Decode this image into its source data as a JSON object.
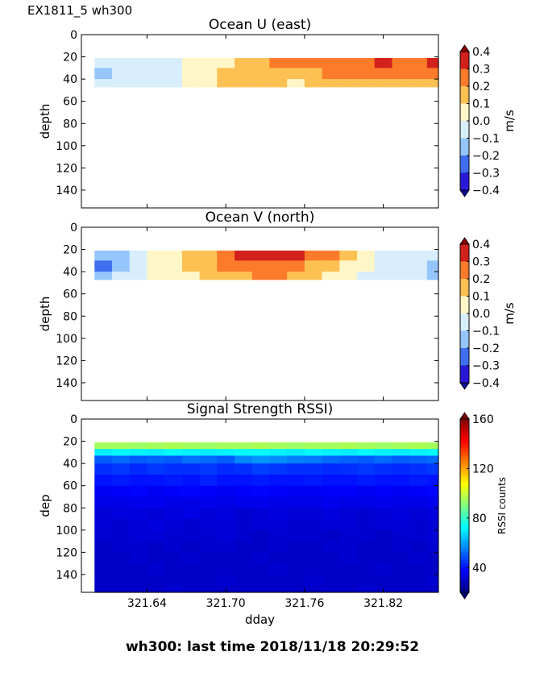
{
  "figure": {
    "suptitle": "EX1811_5 wh300",
    "footer": "wh300: last time 2018/11/18 20:29:52"
  },
  "chart_data": [
    {
      "type": "heatmap",
      "title": "Ocean U (east)",
      "xlabel": "",
      "ylabel": "depth",
      "x": [
        321.6,
        321.6133,
        321.6267,
        321.64,
        321.6533,
        321.6667,
        321.68,
        321.6933,
        321.7067,
        321.72,
        321.7333,
        321.7467,
        321.76,
        321.7733,
        321.7867,
        321.8,
        321.8133,
        321.8267,
        321.84,
        321.8533
      ],
      "xlim": [
        321.59,
        321.862
      ],
      "xticks": [
        "321.64",
        "321.70",
        "321.76",
        "321.82"
      ],
      "ylim": [
        156,
        0
      ],
      "yticks": [
        "0",
        "20",
        "40",
        "60",
        "80",
        "100",
        "120",
        "140"
      ],
      "depth_bins": [
        21,
        30,
        40
      ],
      "values": [
        [
          -0.05,
          -0.05,
          -0.05,
          -0.05,
          -0.05,
          0.05,
          0.05,
          0.05,
          0.15,
          0.15,
          0.25,
          0.25,
          0.25,
          0.25,
          0.25,
          0.25,
          0.35,
          0.25,
          0.25,
          0.35
        ],
        [
          -0.15,
          -0.05,
          -0.05,
          -0.05,
          -0.05,
          0.05,
          0.05,
          0.15,
          0.15,
          0.15,
          0.15,
          0.15,
          0.15,
          0.25,
          0.25,
          0.25,
          0.25,
          0.25,
          0.25,
          0.25
        ],
        [
          -0.05,
          -0.05,
          -0.05,
          -0.05,
          -0.05,
          0.05,
          0.05,
          0.15,
          0.15,
          0.15,
          0.15,
          0.05,
          0.15,
          0.15,
          0.15,
          0.15,
          0.15,
          0.15,
          0.15,
          0.15
        ]
      ],
      "colorbar": {
        "label": "m/s",
        "ticks": [
          "0.4",
          "0.3",
          "0.2",
          "0.1",
          "0.0",
          "−0.1",
          "−0.2",
          "−0.3",
          "−0.4"
        ],
        "range": [
          -0.4,
          0.4
        ]
      }
    },
    {
      "type": "heatmap",
      "title": "Ocean V (north)",
      "xlabel": "",
      "ylabel": "depth",
      "x": [
        321.6,
        321.6133,
        321.6267,
        321.64,
        321.6533,
        321.6667,
        321.68,
        321.6933,
        321.7067,
        321.72,
        321.7333,
        321.7467,
        321.76,
        321.7733,
        321.7867,
        321.8,
        321.8133,
        321.8267,
        321.84,
        321.8533
      ],
      "xlim": [
        321.59,
        321.862
      ],
      "xticks": [
        "321.64",
        "321.70",
        "321.76",
        "321.82"
      ],
      "ylim": [
        156,
        0
      ],
      "yticks": [
        "0",
        "20",
        "40",
        "60",
        "80",
        "100",
        "120",
        "140"
      ],
      "depth_bins": [
        21,
        30,
        40
      ],
      "values": [
        [
          -0.15,
          -0.15,
          -0.05,
          0.05,
          0.05,
          0.15,
          0.15,
          0.25,
          0.35,
          0.35,
          0.35,
          0.35,
          0.25,
          0.25,
          0.15,
          0.05,
          -0.05,
          -0.05,
          -0.05,
          -0.05
        ],
        [
          -0.25,
          -0.15,
          -0.05,
          0.05,
          0.05,
          0.15,
          0.15,
          0.25,
          0.25,
          0.25,
          0.25,
          0.25,
          0.15,
          0.15,
          0.05,
          0.05,
          -0.05,
          -0.05,
          -0.05,
          -0.15
        ],
        [
          -0.15,
          -0.05,
          -0.05,
          0.05,
          0.05,
          0.05,
          0.15,
          0.15,
          0.15,
          0.25,
          0.25,
          0.15,
          0.15,
          0.05,
          0.05,
          -0.05,
          -0.05,
          -0.05,
          -0.05,
          -0.15
        ]
      ],
      "colorbar": {
        "label": "m/s",
        "ticks": [
          "0.4",
          "0.3",
          "0.2",
          "0.1",
          "0.0",
          "−0.1",
          "−0.2",
          "−0.3",
          "−0.4"
        ],
        "range": [
          -0.4,
          0.4
        ]
      }
    },
    {
      "type": "heatmap",
      "title": "Signal Strength RSSI)",
      "xlabel": "dday",
      "ylabel": "dep",
      "x": [
        321.6,
        321.6133,
        321.6267,
        321.64,
        321.6533,
        321.6667,
        321.68,
        321.6933,
        321.7067,
        321.72,
        321.7333,
        321.7467,
        321.76,
        321.7733,
        321.7867,
        321.8,
        321.8133,
        321.8267,
        321.84,
        321.8533
      ],
      "xlim": [
        321.59,
        321.862
      ],
      "xticks": [
        "321.64",
        "321.70",
        "321.76",
        "321.82"
      ],
      "ylim": [
        156,
        0
      ],
      "yticks": [
        "0",
        "20",
        "40",
        "60",
        "80",
        "100",
        "120",
        "140"
      ],
      "depth_bins": [
        21,
        27,
        33,
        40,
        50,
        60,
        70,
        80,
        90,
        100,
        110,
        120,
        130,
        140,
        150
      ],
      "values": [
        [
          95,
          95,
          94,
          95,
          96,
          95,
          94,
          95,
          95,
          96,
          95,
          94,
          95,
          95,
          96,
          95,
          94,
          95,
          96,
          95
        ],
        [
          70,
          72,
          71,
          70,
          72,
          71,
          70,
          71,
          72,
          72,
          71,
          70,
          72,
          71,
          70,
          72,
          71,
          70,
          71,
          72
        ],
        [
          50,
          52,
          50,
          51,
          50,
          53,
          52,
          50,
          56,
          58,
          57,
          55,
          54,
          52,
          51,
          50,
          52,
          50,
          51,
          52
        ],
        [
          44,
          45,
          43,
          45,
          44,
          44,
          45,
          43,
          44,
          46,
          45,
          44,
          44,
          43,
          44,
          45,
          44,
          43,
          44,
          45
        ],
        [
          40,
          41,
          40,
          40,
          41,
          40,
          42,
          40,
          40,
          41,
          40,
          40,
          41,
          40,
          40,
          41,
          40,
          40,
          41,
          40
        ],
        [
          36,
          37,
          38,
          36,
          37,
          38,
          37,
          36,
          37,
          38,
          37,
          36,
          36,
          37,
          37,
          36,
          37,
          36,
          37,
          38
        ],
        [
          34,
          34,
          35,
          35,
          34,
          34,
          35,
          34,
          35,
          35,
          34,
          34,
          34,
          35,
          34,
          34,
          35,
          34,
          34,
          35
        ],
        [
          32,
          33,
          33,
          32,
          33,
          34,
          32,
          33,
          31,
          32,
          33,
          32,
          32,
          33,
          32,
          31,
          32,
          33,
          32,
          33
        ],
        [
          32,
          31,
          32,
          33,
          32,
          31,
          32,
          32,
          31,
          32,
          32,
          31,
          31,
          32,
          32,
          31,
          32,
          32,
          31,
          32
        ],
        [
          31,
          31,
          32,
          32,
          31,
          31,
          31,
          32,
          31,
          30,
          31,
          31,
          31,
          30,
          31,
          31,
          30,
          31,
          31,
          32
        ],
        [
          30,
          31,
          31,
          30,
          31,
          30,
          31,
          31,
          30,
          30,
          31,
          30,
          30,
          31,
          31,
          30,
          30,
          31,
          30,
          31
        ],
        [
          30,
          30,
          31,
          30,
          30,
          31,
          30,
          30,
          30,
          31,
          30,
          30,
          30,
          30,
          31,
          30,
          30,
          30,
          31,
          30
        ],
        [
          30,
          30,
          30,
          31,
          30,
          30,
          30,
          30,
          30,
          30,
          31,
          30,
          30,
          30,
          30,
          30,
          31,
          30,
          30,
          30
        ],
        [
          30,
          30,
          30,
          30,
          30,
          30,
          30,
          31,
          30,
          30,
          30,
          30,
          31,
          30,
          30,
          30,
          30,
          30,
          30,
          31
        ],
        [
          30,
          30,
          30,
          30,
          31,
          30,
          30,
          30,
          30,
          30,
          30,
          30,
          30,
          30,
          30,
          31,
          30,
          30,
          30,
          30
        ]
      ],
      "colorbar": {
        "label": "RSSI counts",
        "ticks": [
          "160",
          "120",
          "80",
          "40"
        ],
        "range": [
          20,
          160
        ]
      }
    }
  ]
}
